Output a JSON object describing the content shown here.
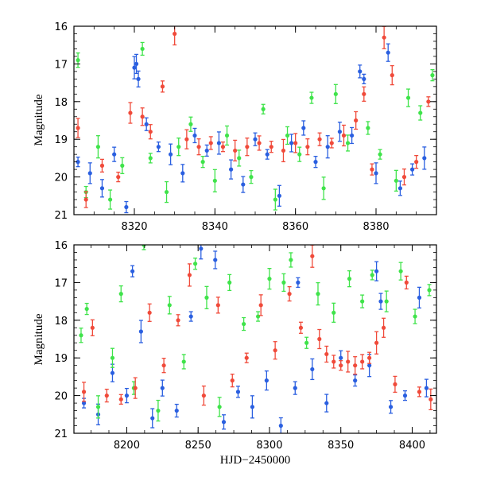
{
  "chart_data": [
    {
      "type": "scatter",
      "panel": "top",
      "title": "",
      "xlabel": "",
      "ylabel": "Magnitude",
      "xlim": [
        8305,
        8395
      ],
      "ylim": [
        21,
        16
      ],
      "y_inverted": true,
      "xticks": [
        8320,
        8340,
        8360,
        8380
      ],
      "yticks": [
        16,
        17,
        18,
        19,
        20,
        21
      ],
      "error_bars": true,
      "series": [
        {
          "color": "#2a5fe0",
          "points": [
            [
              8306,
              19.6
            ],
            [
              8309,
              19.9
            ],
            [
              8312,
              20.3
            ],
            [
              8315,
              19.4
            ],
            [
              8318,
              20.8
            ],
            [
              8320,
              17.1
            ],
            [
              8320.5,
              17.0
            ],
            [
              8321,
              17.4
            ],
            [
              8323,
              18.6
            ],
            [
              8326,
              19.2
            ],
            [
              8329,
              19.4
            ],
            [
              8332,
              19.9
            ],
            [
              8335,
              18.9
            ],
            [
              8338,
              19.3
            ],
            [
              8341,
              19.1
            ],
            [
              8344,
              19.8
            ],
            [
              8347,
              20.2
            ],
            [
              8350,
              19.0
            ],
            [
              8353,
              19.4
            ],
            [
              8356,
              20.5
            ],
            [
              8359,
              19.1
            ],
            [
              8362,
              18.7
            ],
            [
              8365,
              19.6
            ],
            [
              8368,
              19.2
            ],
            [
              8371,
              18.8
            ],
            [
              8374,
              18.9
            ],
            [
              8376,
              17.2
            ],
            [
              8377,
              17.4
            ],
            [
              8380,
              19.9
            ],
            [
              8383,
              16.7
            ],
            [
              8386,
              20.3
            ],
            [
              8389,
              19.8
            ],
            [
              8392,
              19.5
            ]
          ]
        },
        {
          "color": "#3fe34a",
          "points": [
            [
              8306,
              16.9
            ],
            [
              8308,
              20.4
            ],
            [
              8311,
              19.2
            ],
            [
              8314,
              20.6
            ],
            [
              8317,
              19.7
            ],
            [
              8322,
              16.6
            ],
            [
              8324,
              19.5
            ],
            [
              8328,
              20.4
            ],
            [
              8331,
              19.2
            ],
            [
              8334,
              18.6
            ],
            [
              8337,
              19.6
            ],
            [
              8340,
              20.1
            ],
            [
              8343,
              18.9
            ],
            [
              8346,
              19.5
            ],
            [
              8349,
              20.0
            ],
            [
              8352,
              18.2
            ],
            [
              8355,
              20.6
            ],
            [
              8358,
              18.9
            ],
            [
              8361,
              19.4
            ],
            [
              8364,
              17.9
            ],
            [
              8367,
              20.3
            ],
            [
              8370,
              17.8
            ],
            [
              8373,
              19.1
            ],
            [
              8378,
              18.7
            ],
            [
              8381,
              19.4
            ],
            [
              8385,
              20.1
            ],
            [
              8388,
              17.9
            ],
            [
              8391,
              18.3
            ],
            [
              8394,
              17.3
            ]
          ]
        },
        {
          "color": "#f04a3a",
          "points": [
            [
              8306,
              18.7
            ],
            [
              8308,
              20.6
            ],
            [
              8312,
              19.7
            ],
            [
              8316,
              20.0
            ],
            [
              8319,
              18.3
            ],
            [
              8322,
              18.4
            ],
            [
              8324,
              18.8
            ],
            [
              8327,
              17.6
            ],
            [
              8330,
              16.2
            ],
            [
              8333,
              19.0
            ],
            [
              8336,
              19.2
            ],
            [
              8339,
              19.1
            ],
            [
              8342,
              19.2
            ],
            [
              8345,
              19.3
            ],
            [
              8348,
              19.2
            ],
            [
              8351,
              19.1
            ],
            [
              8354,
              19.2
            ],
            [
              8357,
              19.3
            ],
            [
              8360,
              19.1
            ],
            [
              8363,
              19.2
            ],
            [
              8366,
              19.0
            ],
            [
              8369,
              19.1
            ],
            [
              8372,
              18.9
            ],
            [
              8375,
              18.5
            ],
            [
              8377,
              17.8
            ],
            [
              8379,
              19.8
            ],
            [
              8382,
              16.3
            ],
            [
              8384,
              17.3
            ],
            [
              8387,
              20.0
            ],
            [
              8390,
              19.6
            ],
            [
              8393,
              18.0
            ]
          ]
        }
      ]
    },
    {
      "type": "scatter",
      "panel": "bottom",
      "title": "",
      "xlabel": "HJD−2450000",
      "ylabel": "Magnitude",
      "xlim": [
        8163,
        8417
      ],
      "ylim": [
        21,
        16
      ],
      "y_inverted": true,
      "xticks": [
        8200,
        8250,
        8300,
        8350,
        8400
      ],
      "yticks": [
        16,
        17,
        18,
        19,
        20,
        21
      ],
      "error_bars": true,
      "series": [
        {
          "color": "#2a5fe0",
          "points": [
            [
              8170,
              20.2
            ],
            [
              8180,
              20.5
            ],
            [
              8190,
              19.4
            ],
            [
              8200,
              20.0
            ],
            [
              8204,
              16.7
            ],
            [
              8210,
              18.3
            ],
            [
              8218,
              20.6
            ],
            [
              8225,
              19.8
            ],
            [
              8235,
              20.4
            ],
            [
              8245,
              17.9
            ],
            [
              8252,
              16.1
            ],
            [
              8262,
              16.4
            ],
            [
              8268,
              20.7
            ],
            [
              8278,
              19.9
            ],
            [
              8288,
              20.3
            ],
            [
              8298,
              19.6
            ],
            [
              8308,
              20.8
            ],
            [
              8318,
              19.8
            ],
            [
              8320,
              17.0
            ],
            [
              8330,
              19.3
            ],
            [
              8340,
              20.2
            ],
            [
              8350,
              19.0
            ],
            [
              8360,
              19.6
            ],
            [
              8370,
              19.2
            ],
            [
              8375,
              16.7
            ],
            [
              8378,
              17.5
            ],
            [
              8385,
              20.3
            ],
            [
              8395,
              20.0
            ],
            [
              8405,
              17.4
            ],
            [
              8410,
              19.8
            ]
          ]
        },
        {
          "color": "#3fe34a",
          "points": [
            [
              8168,
              18.4
            ],
            [
              8172,
              17.7
            ],
            [
              8180,
              20.3
            ],
            [
              8190,
              19.0
            ],
            [
              8196,
              17.3
            ],
            [
              8205,
              19.8
            ],
            [
              8212,
              16.0
            ],
            [
              8222,
              20.4
            ],
            [
              8230,
              17.6
            ],
            [
              8240,
              19.1
            ],
            [
              8248,
              16.5
            ],
            [
              8256,
              17.4
            ],
            [
              8265,
              20.3
            ],
            [
              8272,
              17.0
            ],
            [
              8282,
              18.1
            ],
            [
              8292,
              17.9
            ],
            [
              8300,
              16.9
            ],
            [
              8310,
              17.0
            ],
            [
              8315,
              16.4
            ],
            [
              8326,
              18.6
            ],
            [
              8334,
              17.3
            ],
            [
              8345,
              17.8
            ],
            [
              8356,
              16.9
            ],
            [
              8365,
              17.5
            ],
            [
              8372,
              16.8
            ],
            [
              8382,
              17.5
            ],
            [
              8392,
              16.7
            ],
            [
              8402,
              17.9
            ],
            [
              8412,
              17.2
            ]
          ]
        },
        {
          "color": "#f04a3a",
          "points": [
            [
              8170,
              19.9
            ],
            [
              8176,
              18.2
            ],
            [
              8186,
              20.0
            ],
            [
              8196,
              20.1
            ],
            [
              8206,
              19.8
            ],
            [
              8216,
              17.8
            ],
            [
              8226,
              19.2
            ],
            [
              8236,
              18.0
            ],
            [
              8244,
              16.8
            ],
            [
              8254,
              20.0
            ],
            [
              8264,
              17.6
            ],
            [
              8274,
              19.6
            ],
            [
              8284,
              19.0
            ],
            [
              8294,
              17.6
            ],
            [
              8304,
              18.8
            ],
            [
              8314,
              17.3
            ],
            [
              8322,
              18.2
            ],
            [
              8330,
              16.3
            ],
            [
              8335,
              18.5
            ],
            [
              8340,
              18.9
            ],
            [
              8345,
              19.1
            ],
            [
              8350,
              19.2
            ],
            [
              8355,
              19.1
            ],
            [
              8360,
              19.2
            ],
            [
              8365,
              19.1
            ],
            [
              8370,
              19.0
            ],
            [
              8375,
              18.6
            ],
            [
              8380,
              18.2
            ],
            [
              8388,
              19.7
            ],
            [
              8396,
              17.0
            ],
            [
              8405,
              19.9
            ],
            [
              8413,
              20.1
            ]
          ]
        }
      ]
    }
  ]
}
